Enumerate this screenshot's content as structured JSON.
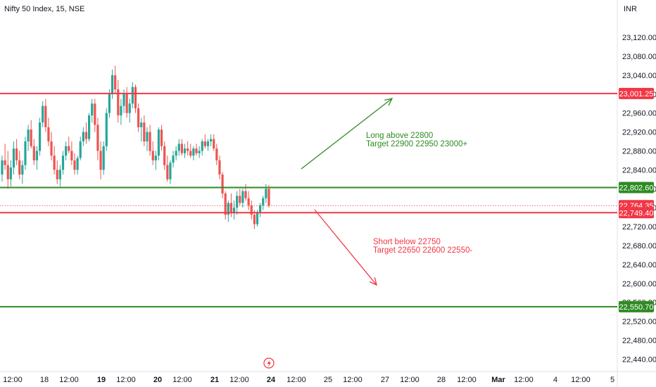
{
  "symbol_title": "Nifty 50 Index, 15, NSE",
  "currency": "INR",
  "colors": {
    "up": "#26a69a",
    "down": "#ef5350",
    "red_line": "#f23645",
    "green_line": "#2e8b22",
    "axis_text": "#131722",
    "current_price_label": "#f23645"
  },
  "chart_data": {
    "type": "candlestick",
    "title": "Nifty 50 Index, 15, NSE",
    "y_axis": {
      "ticks": [
        "23,120.00",
        "23,080.00",
        "23,040.00",
        "23,000.00",
        "22,960.00",
        "22,920.00",
        "22,880.00",
        "22,840.00",
        "22,800.00",
        "22,760.00",
        "22,720.00",
        "22,680.00",
        "22,640.00",
        "22,600.00",
        "22,560.00",
        "22,520.00",
        "22,480.00",
        "22,440.00"
      ],
      "tick_values": [
        23120,
        23080,
        23040,
        23000,
        22960,
        22920,
        22880,
        22840,
        22800,
        22760,
        22720,
        22680,
        22640,
        22600,
        22560,
        22520,
        22480,
        22440
      ],
      "range": [
        22415,
        23148
      ]
    },
    "x_axis": {
      "ticks": [
        "12:00",
        "18",
        "12:00",
        "19",
        "12:00",
        "20",
        "12:00",
        "21",
        "12:00",
        "24",
        "12:00",
        "25",
        "12:00",
        "27",
        "12:00",
        "28",
        "12:00",
        "Mar",
        "12:00",
        "4",
        "12:00",
        "5"
      ],
      "bold": [
        "19",
        "20",
        "21",
        "24",
        "Mar"
      ]
    },
    "horizontal_levels": [
      {
        "price": 23001.25,
        "label": "23,001.25",
        "color": "red"
      },
      {
        "price": 22802.6,
        "label": "22,802.60",
        "color": "green"
      },
      {
        "price": 22764.35,
        "label": "22,764.35",
        "color": "red",
        "style": "dotted",
        "current": true
      },
      {
        "price": 22749.4,
        "label": "22,749.40",
        "color": "red"
      },
      {
        "price": 22550.7,
        "label": "22,550.70",
        "color": "green"
      }
    ],
    "annotations": [
      {
        "lines": [
          "Long above 22800",
          "Target 22900 22950 23000+"
        ],
        "color": "green"
      },
      {
        "lines": [
          "Short below 22750",
          "Target 22650 22600 22550-"
        ],
        "color": "red"
      }
    ],
    "arrows": [
      {
        "direction": "up",
        "color": "green"
      },
      {
        "direction": "down",
        "color": "red"
      }
    ],
    "candles": [
      [
        22830,
        22870,
        22815,
        22860
      ],
      [
        22860,
        22895,
        22840,
        22850
      ],
      [
        22850,
        22880,
        22800,
        22820
      ],
      [
        22820,
        22860,
        22805,
        22845
      ],
      [
        22845,
        22900,
        22830,
        22885
      ],
      [
        22885,
        22905,
        22850,
        22860
      ],
      [
        22860,
        22880,
        22820,
        22830
      ],
      [
        22830,
        22860,
        22810,
        22850
      ],
      [
        22850,
        22910,
        22840,
        22900
      ],
      [
        22900,
        22935,
        22880,
        22925
      ],
      [
        22925,
        22945,
        22885,
        22890
      ],
      [
        22890,
        22905,
        22850,
        22860
      ],
      [
        22860,
        22890,
        22840,
        22880
      ],
      [
        22880,
        22950,
        22870,
        22940
      ],
      [
        22940,
        22985,
        22930,
        22975
      ],
      [
        22975,
        22990,
        22920,
        22930
      ],
      [
        22930,
        22950,
        22890,
        22900
      ],
      [
        22900,
        22920,
        22860,
        22870
      ],
      [
        22870,
        22890,
        22830,
        22840
      ],
      [
        22840,
        22860,
        22810,
        22820
      ],
      [
        22820,
        22850,
        22805,
        22840
      ],
      [
        22840,
        22880,
        22830,
        22870
      ],
      [
        22870,
        22900,
        22860,
        22890
      ],
      [
        22890,
        22910,
        22875,
        22880
      ],
      [
        22880,
        22900,
        22850,
        22860
      ],
      [
        22860,
        22875,
        22830,
        22840
      ],
      [
        22840,
        22870,
        22830,
        22865
      ],
      [
        22865,
        22910,
        22860,
        22900
      ],
      [
        22900,
        22930,
        22890,
        22920
      ],
      [
        22920,
        22940,
        22895,
        22905
      ],
      [
        22905,
        22960,
        22900,
        22955
      ],
      [
        22955,
        22990,
        22940,
        22980
      ],
      [
        22980,
        22990,
        22920,
        22935
      ],
      [
        22935,
        22950,
        22860,
        22880
      ],
      [
        22880,
        22900,
        22820,
        22840
      ],
      [
        22840,
        22900,
        22830,
        22890
      ],
      [
        22890,
        22970,
        22880,
        22960
      ],
      [
        22960,
        23010,
        22950,
        23000
      ],
      [
        23000,
        23052,
        22990,
        23040
      ],
      [
        23040,
        23060,
        23000,
        23010
      ],
      [
        23010,
        23030,
        22940,
        22955
      ],
      [
        22955,
        22990,
        22935,
        22975
      ],
      [
        22975,
        23010,
        22960,
        23000
      ],
      [
        23000,
        23015,
        22950,
        22960
      ],
      [
        22960,
        22990,
        22940,
        22980
      ],
      [
        22980,
        23025,
        22970,
        23015
      ],
      [
        23015,
        23020,
        22960,
        22970
      ],
      [
        22970,
        22980,
        22920,
        22930
      ],
      [
        22930,
        22950,
        22900,
        22940
      ],
      [
        22940,
        22955,
        22890,
        22900
      ],
      [
        22900,
        22930,
        22880,
        22920
      ],
      [
        22920,
        22935,
        22870,
        22880
      ],
      [
        22880,
        22900,
        22850,
        22860
      ],
      [
        22860,
        22880,
        22840,
        22870
      ],
      [
        22870,
        22930,
        22860,
        22925
      ],
      [
        22925,
        22935,
        22880,
        22890
      ],
      [
        22890,
        22900,
        22840,
        22850
      ],
      [
        22850,
        22870,
        22815,
        22820
      ],
      [
        22820,
        22860,
        22810,
        22855
      ],
      [
        22855,
        22880,
        22845,
        22870
      ],
      [
        22870,
        22890,
        22860,
        22880
      ],
      [
        22880,
        22905,
        22870,
        22895
      ],
      [
        22895,
        22905,
        22870,
        22875
      ],
      [
        22875,
        22895,
        22865,
        22885
      ],
      [
        22885,
        22900,
        22870,
        22880
      ],
      [
        22880,
        22895,
        22865,
        22870
      ],
      [
        22870,
        22890,
        22860,
        22885
      ],
      [
        22885,
        22895,
        22870,
        22875
      ],
      [
        22875,
        22890,
        22865,
        22880
      ],
      [
        22880,
        22905,
        22870,
        22900
      ],
      [
        22900,
        22915,
        22885,
        22890
      ],
      [
        22890,
        22905,
        22880,
        22900
      ],
      [
        22900,
        22915,
        22890,
        22905
      ],
      [
        22905,
        22915,
        22880,
        22885
      ],
      [
        22885,
        22895,
        22850,
        22860
      ],
      [
        22860,
        22870,
        22820,
        22830
      ],
      [
        22830,
        22835,
        22780,
        22790
      ],
      [
        22790,
        22795,
        22735,
        22745
      ],
      [
        22745,
        22775,
        22730,
        22770
      ],
      [
        22770,
        22790,
        22740,
        22750
      ],
      [
        22750,
        22775,
        22735,
        22760
      ],
      [
        22760,
        22795,
        22745,
        22785
      ],
      [
        22785,
        22800,
        22765,
        22770
      ],
      [
        22770,
        22800,
        22760,
        22795
      ],
      [
        22795,
        22810,
        22775,
        22780
      ],
      [
        22780,
        22795,
        22755,
        22765
      ],
      [
        22765,
        22775,
        22735,
        22745
      ],
      [
        22745,
        22755,
        22715,
        22725
      ],
      [
        22725,
        22755,
        22720,
        22750
      ],
      [
        22750,
        22770,
        22740,
        22765
      ],
      [
        22765,
        22785,
        22755,
        22780
      ],
      [
        22780,
        22810,
        22770,
        22800
      ],
      [
        22800,
        22808,
        22760,
        22764
      ]
    ]
  }
}
